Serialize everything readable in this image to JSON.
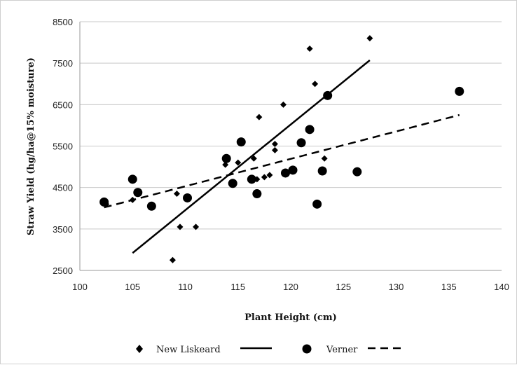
{
  "chart_data": {
    "type": "scatter",
    "xlabel": "Plant Height (cm)",
    "ylabel": "Straw Yield (hg/ha@15% moisture)",
    "xlim": [
      100,
      140
    ],
    "ylim": [
      2500,
      8500
    ],
    "xticks": [
      "100",
      "105",
      "110",
      "115",
      "120",
      "125",
      "130",
      "135",
      "140"
    ],
    "yticks": [
      "2500",
      "3500",
      "4500",
      "5500",
      "6500",
      "7500",
      "8500"
    ],
    "grid": "horizontal",
    "legend_position": "bottom",
    "series": [
      {
        "name": "New Liskeard",
        "marker": "diamond",
        "color": "#000000",
        "points": [
          [
            102.5,
            4100
          ],
          [
            105.0,
            4200
          ],
          [
            109.2,
            4350
          ],
          [
            109.5,
            3550
          ],
          [
            111.0,
            3550
          ],
          [
            108.8,
            2750
          ],
          [
            113.8,
            5050
          ],
          [
            115.0,
            5100
          ],
          [
            116.5,
            5200
          ],
          [
            116.8,
            4700
          ],
          [
            117.0,
            6200
          ],
          [
            117.5,
            4750
          ],
          [
            118.0,
            4800
          ],
          [
            118.5,
            5400
          ],
          [
            118.5,
            5550
          ],
          [
            119.3,
            6500
          ],
          [
            121.8,
            7850
          ],
          [
            122.3,
            7000
          ],
          [
            123.2,
            5200
          ],
          [
            127.5,
            8100
          ]
        ],
        "trend": {
          "style": "solid",
          "x": [
            105,
            127.5
          ],
          "y": [
            2920,
            7570
          ]
        }
      },
      {
        "name": "Verner",
        "marker": "circle",
        "color": "#000000",
        "points": [
          [
            102.3,
            4150
          ],
          [
            105.0,
            4700
          ],
          [
            105.5,
            4380
          ],
          [
            106.8,
            4050
          ],
          [
            110.2,
            4250
          ],
          [
            113.9,
            5200
          ],
          [
            114.5,
            4600
          ],
          [
            115.3,
            5600
          ],
          [
            116.3,
            4700
          ],
          [
            116.8,
            4350
          ],
          [
            119.5,
            4850
          ],
          [
            120.2,
            4920
          ],
          [
            121.0,
            5580
          ],
          [
            121.8,
            5900
          ],
          [
            122.5,
            4100
          ],
          [
            123.0,
            4900
          ],
          [
            123.5,
            6720
          ],
          [
            126.3,
            4880
          ],
          [
            136.0,
            6820
          ]
        ],
        "trend": {
          "style": "dashed",
          "x": [
            102.3,
            136
          ],
          "y": [
            4020,
            6250
          ]
        }
      }
    ]
  }
}
